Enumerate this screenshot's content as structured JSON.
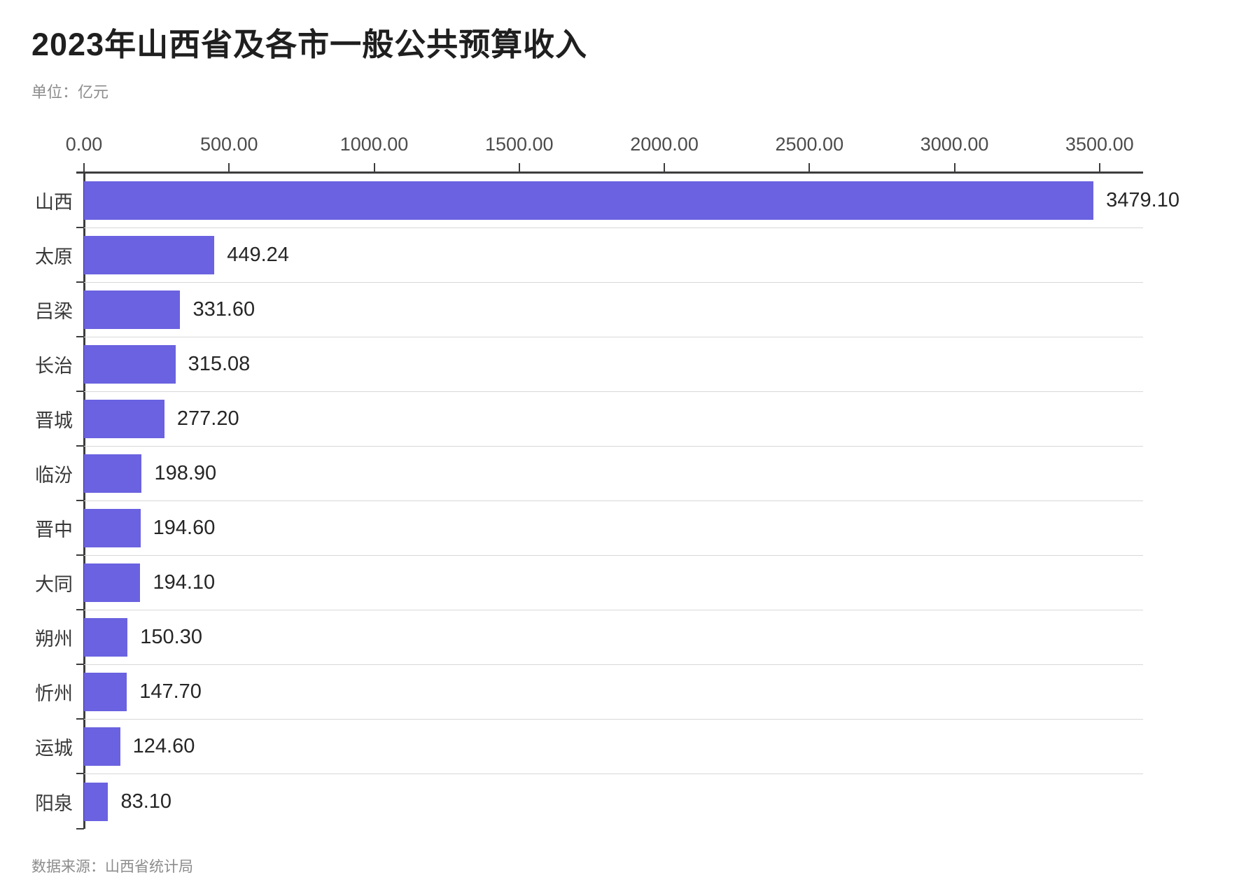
{
  "chart": {
    "title": "2023年山西省及各市一般公共预算收入",
    "unit_label": "单位：亿元",
    "source": "数据来源：山西省统计局",
    "colors": {
      "bar": "#6a62e0",
      "axis": "#3d3d3d",
      "separator": "#d8d8d8",
      "title_text": "#1f1f1f",
      "muted_text": "#8c8c8c",
      "value_text": "#262626",
      "tick_label_text": "#4c4c4c"
    }
  },
  "chart_data": {
    "type": "bar",
    "orientation": "horizontal",
    "title": "2023年山西省及各市一般公共预算收入",
    "unit": "亿元",
    "xlabel": "",
    "ylabel": "",
    "categories": [
      "山西",
      "太原",
      "吕梁",
      "长治",
      "晋城",
      "临汾",
      "晋中",
      "大同",
      "朔州",
      "忻州",
      "运城",
      "阳泉"
    ],
    "values": [
      3479.1,
      449.24,
      331.6,
      315.08,
      277.2,
      198.9,
      194.6,
      194.1,
      150.3,
      147.7,
      124.6,
      83.1
    ],
    "value_labels": [
      "3479.10",
      "449.24",
      "331.60",
      "315.08",
      "277.20",
      "198.90",
      "194.60",
      "194.10",
      "150.30",
      "147.70",
      "124.60",
      "83.10"
    ],
    "x_ticks": [
      "0.00",
      "500.00",
      "1000.00",
      "1500.00",
      "2000.00",
      "2500.00",
      "3000.00",
      "3500.00"
    ],
    "x_tick_values": [
      0,
      500,
      1000,
      1500,
      2000,
      2500,
      3000,
      3500
    ],
    "xlim": [
      0,
      3650
    ],
    "grid": false,
    "legend": false,
    "axis_position": "top",
    "source": "数据来源：山西省统计局"
  }
}
